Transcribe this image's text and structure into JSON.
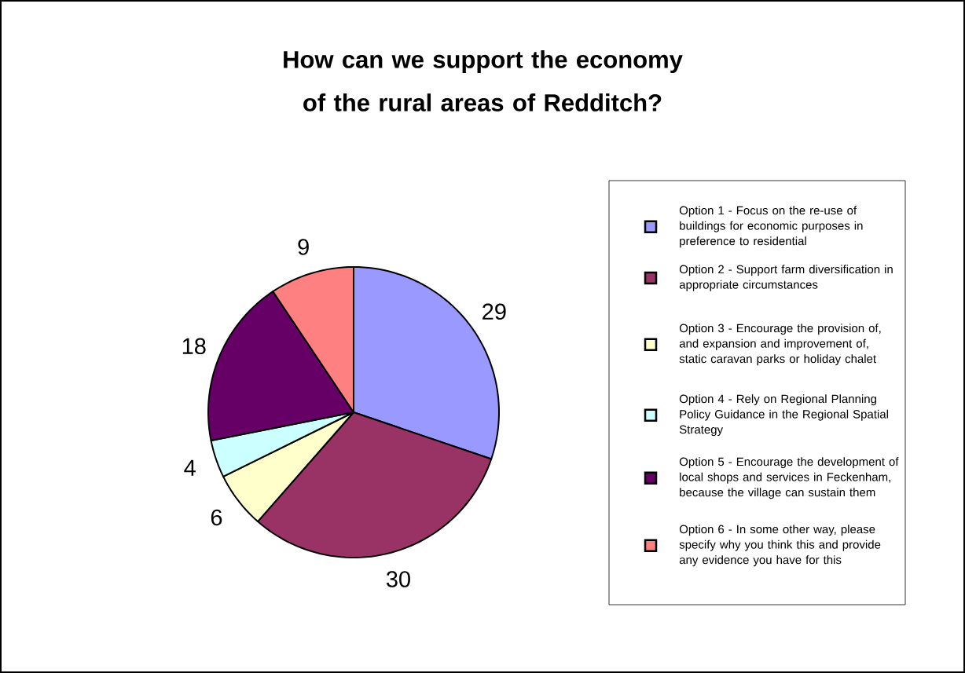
{
  "chart_data": {
    "type": "pie",
    "title": "How can we support the economy of the rural areas of Redditch?",
    "categories": [
      "Option 1 - Focus on the re-use of buildings for economic purposes in preference to residential",
      "Option 2 - Support farm diversification in appropriate circumstances",
      "Option 3 - Encourage the provision of, and expansion and improvement of, static caravan parks or holiday chalet",
      "Option 4 - Rely on Regional Planning Policy Guidance in the Regional Spatial Strategy",
      "Option 5 - Encourage the development of local shops and services in Feckenham, because the village can sustain them",
      "Option 6 - In some other way, please specify why you think this and provide any evidence you have for this"
    ],
    "values": [
      29,
      30,
      6,
      4,
      18,
      9
    ],
    "colors": [
      "#9999ff",
      "#993366",
      "#ffffcc",
      "#ccffff",
      "#660066",
      "#ff8080"
    ],
    "data_labels": true,
    "legend": "right"
  }
}
